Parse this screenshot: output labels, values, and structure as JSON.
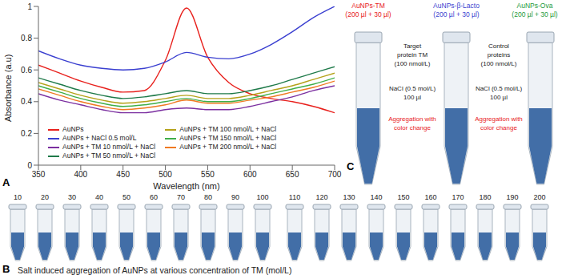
{
  "chart_data": {
    "type": "line",
    "annotations": [
      "A"
    ],
    "xlabel": "Wavelength (nm)",
    "ylabel": "Absorbance (a.u)",
    "x": [
      350,
      375,
      400,
      425,
      450,
      475,
      500,
      525,
      550,
      575,
      600,
      625,
      650,
      675,
      700
    ],
    "xlim": [
      350,
      700
    ],
    "xticks": [
      350,
      400,
      450,
      500,
      550,
      600,
      650,
      700
    ],
    "ylim": [
      0,
      1
    ],
    "yticks": [
      0,
      0.2,
      0.4,
      0.6,
      0.8,
      1
    ],
    "legend": "bottom",
    "series": [
      {
        "name": "AuNPs",
        "color": "#e8211d",
        "values": [
          0.63,
          0.58,
          0.53,
          0.49,
          0.46,
          0.47,
          0.66,
          0.99,
          0.68,
          0.52,
          0.45,
          0.42,
          0.4,
          0.37,
          0.33
        ]
      },
      {
        "name": "AuNPs + NaCl 0.5 mol/L",
        "color": "#3a3fd0",
        "values": [
          0.72,
          0.67,
          0.63,
          0.61,
          0.6,
          0.61,
          0.65,
          0.71,
          0.68,
          0.67,
          0.7,
          0.76,
          0.84,
          0.93,
          1.0
        ]
      },
      {
        "name": "AuNPs + TM 10 nmol/L + NaCl",
        "color": "#7b2fa0",
        "values": [
          0.45,
          0.41,
          0.38,
          0.35,
          0.33,
          0.33,
          0.35,
          0.36,
          0.35,
          0.35,
          0.37,
          0.4,
          0.43,
          0.47,
          0.5
        ]
      },
      {
        "name": "AuNPs + TM 50 nmol/L + NaCl",
        "color": "#1f7a4a",
        "values": [
          0.55,
          0.51,
          0.47,
          0.44,
          0.42,
          0.43,
          0.45,
          0.47,
          0.45,
          0.45,
          0.47,
          0.5,
          0.54,
          0.58,
          0.62
        ]
      },
      {
        "name": "AuNPs + TM 100 nmol/L + NaCl",
        "color": "#b5a21a",
        "values": [
          0.52,
          0.48,
          0.44,
          0.41,
          0.39,
          0.4,
          0.42,
          0.44,
          0.42,
          0.42,
          0.44,
          0.47,
          0.5,
          0.54,
          0.58
        ]
      },
      {
        "name": "AuNPs + TM 150 nmol/L + NaCl",
        "color": "#3fae49",
        "values": [
          0.5,
          0.46,
          0.42,
          0.39,
          0.37,
          0.38,
          0.4,
          0.42,
          0.4,
          0.4,
          0.42,
          0.45,
          0.48,
          0.51,
          0.55
        ]
      },
      {
        "name": "AuNPs + TM 200 nmol/L + NaCl",
        "color": "#f07a22",
        "values": [
          0.48,
          0.44,
          0.4,
          0.37,
          0.35,
          0.36,
          0.38,
          0.41,
          0.39,
          0.39,
          0.41,
          0.43,
          0.46,
          0.49,
          0.53
        ]
      }
    ]
  },
  "panel_b": {
    "label": "B",
    "tube_labels": [
      10,
      20,
      30,
      40,
      50,
      60,
      70,
      80,
      90,
      100,
      110,
      120,
      130,
      140,
      150,
      160,
      170,
      180,
      190,
      200
    ],
    "caption": "Salt induced aggregation of AuNPs at various concentration of TM (mol/L)"
  },
  "panel_c": {
    "label": "C",
    "tubes": [
      {
        "name": "AuNPs-TM",
        "volume": "(200 µl + 30 µl)",
        "color": "#e8211d"
      },
      {
        "name": "AuNPs-β-Lacto",
        "volume": "(200 µl + 30 µl)",
        "color": "#3a3fd0"
      },
      {
        "name": "AuNPs-Ova",
        "volume": "(200 µl + 30 µl)",
        "color": "#1e9a3a"
      }
    ],
    "notes": [
      {
        "protein": [
          "Target",
          "protein TM",
          "(100 nmol/L)"
        ],
        "salt": [
          "NaCl (0.5 mol/L)",
          "100 µl"
        ],
        "result": [
          "Aggregation with",
          "color change"
        ]
      },
      {
        "protein": [
          "Control",
          "proteins",
          "(100 nmol/L)"
        ],
        "salt": [
          "NaCl (0.5 mol/L)",
          "100 µl"
        ],
        "result": [
          "Aggregation with",
          "color change"
        ]
      }
    ]
  }
}
